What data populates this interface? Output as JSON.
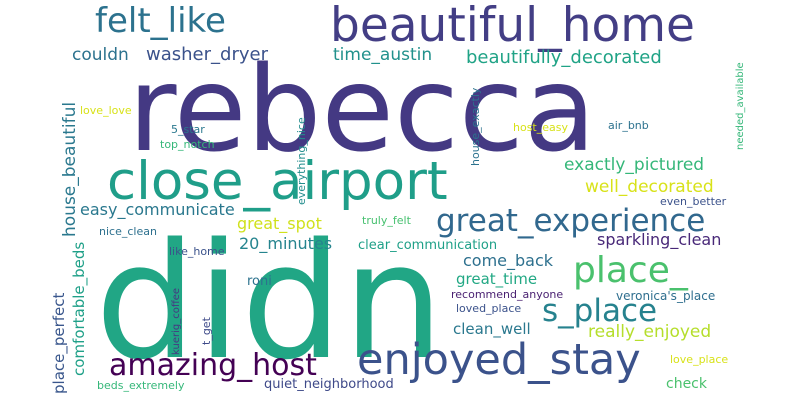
{
  "words": [
    {
      "text": "rebecca",
      "color": "#443983"
    },
    {
      "text": "didn",
      "color": "#21a685"
    },
    {
      "text": "beautiful_home",
      "color": "#433e85"
    },
    {
      "text": "close_airport",
      "color": "#1f9e89"
    },
    {
      "text": "felt_like",
      "color": "#2c728e"
    },
    {
      "text": "enjoyed_stay",
      "color": "#3b528b"
    },
    {
      "text": "great_experience",
      "color": "#31688e"
    },
    {
      "text": "place_",
      "color": "#4ac16d"
    },
    {
      "text": "s_place",
      "color": "#26828e"
    },
    {
      "text": "amazing_host",
      "color": "#440154"
    },
    {
      "text": "beautifully_decorated",
      "color": "#20a386"
    },
    {
      "text": "exactly_pictured",
      "color": "#35b779"
    },
    {
      "text": "well_decorated",
      "color": "#d8e219"
    },
    {
      "text": "couldn",
      "color": "#2c728e"
    },
    {
      "text": "washer_dryer",
      "color": "#3b528b"
    },
    {
      "text": "time_austin",
      "color": "#21918c"
    },
    {
      "text": "easy_communicate",
      "color": "#2a788e"
    },
    {
      "text": "house_beautiful",
      "color": "#2a788e"
    },
    {
      "text": "great_spot",
      "color": "#d0e11c"
    },
    {
      "text": "20_minutes",
      "color": "#25848e"
    },
    {
      "text": "sparkling_clean",
      "color": "#482878"
    },
    {
      "text": "come_back",
      "color": "#2d708e"
    },
    {
      "text": "great_time",
      "color": "#22a884"
    },
    {
      "text": "clean_well",
      "color": "#2a788e"
    },
    {
      "text": "really_enjoyed",
      "color": "#b5de2b"
    },
    {
      "text": "place_perfect",
      "color": "#39568c"
    },
    {
      "text": "comfortable_beds",
      "color": "#1fa088"
    },
    {
      "text": "quiet_neighborhood",
      "color": "#3e4989"
    },
    {
      "text": "check",
      "color": "#4ac16d"
    },
    {
      "text": "love_place",
      "color": "#d8e219"
    },
    {
      "text": "beds_extremely",
      "color": "#35b779"
    },
    {
      "text": "kuerig_coffee",
      "color": "#453882"
    },
    {
      "text": "t_get",
      "color": "#3e4a89"
    },
    {
      "text": "roni",
      "color": "#2c728e"
    },
    {
      "text": "loved_place",
      "color": "#3b528b"
    },
    {
      "text": "recommend_anyone",
      "color": "#481f70"
    },
    {
      "text": "veronica's_place",
      "color": "#2e6e8e"
    },
    {
      "text": "clear_communication",
      "color": "#1fa088"
    },
    {
      "text": "truly_felt",
      "color": "#46c06f"
    },
    {
      "text": "like_home",
      "color": "#3b528b"
    },
    {
      "text": "nice_clean",
      "color": "#2d708e"
    },
    {
      "text": "even_better",
      "color": "#3b528b"
    },
    {
      "text": "love_love",
      "color": "#d8e219"
    },
    {
      "text": "5_star",
      "color": "#2a788e"
    },
    {
      "text": "top_notch",
      "color": "#35b779"
    },
    {
      "text": "everything_nice",
      "color": "#228d8d"
    },
    {
      "text": "house_exactly",
      "color": "#2c728e"
    },
    {
      "text": "host_easy",
      "color": "#d8e219"
    },
    {
      "text": "air_bnb",
      "color": "#2c728e"
    },
    {
      "text": "needed_available",
      "color": "#35b779"
    }
  ]
}
